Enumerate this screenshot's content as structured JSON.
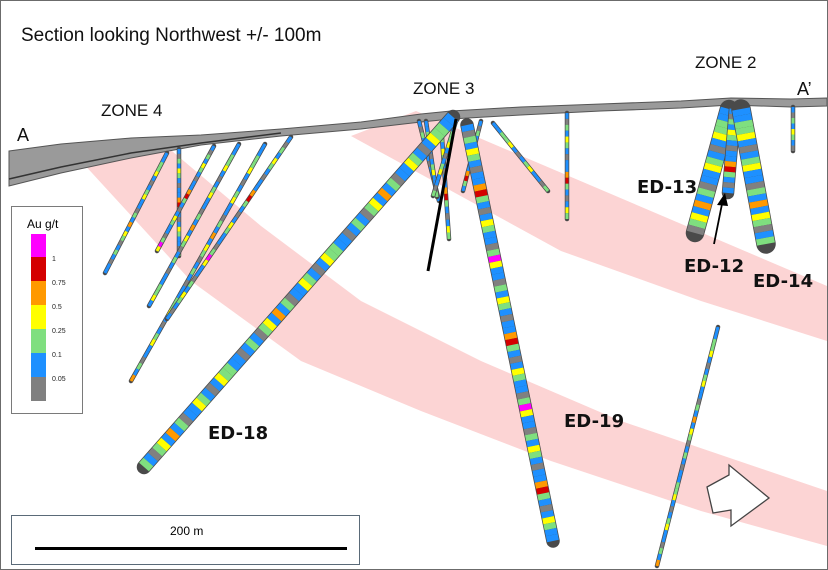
{
  "title": "Section looking Northwest +/- 100m",
  "section_ends": {
    "left": "A",
    "right": "A’"
  },
  "zones": [
    "ZONE 4",
    "ZONE 3",
    "ZONE 2"
  ],
  "drill_holes": [
    "ED-18",
    "ED-19",
    "ED-13",
    "ED-12",
    "ED-14"
  ],
  "legend": {
    "title": "Au g/t",
    "levels": [
      "1",
      "0.75",
      "0.5",
      "0.25",
      "0.1",
      "0.05"
    ],
    "colors": [
      "#ff00ff",
      "#d40000",
      "#ff9900",
      "#ffff00",
      "#7fdf7f",
      "#1e90ff",
      "#808080"
    ]
  },
  "scale": {
    "label": "200 m"
  },
  "colors": {
    "mineralized_zone": "#fcd4d4",
    "topography": "#6e6e6e",
    "trace_outline": "#4a4a4a"
  }
}
